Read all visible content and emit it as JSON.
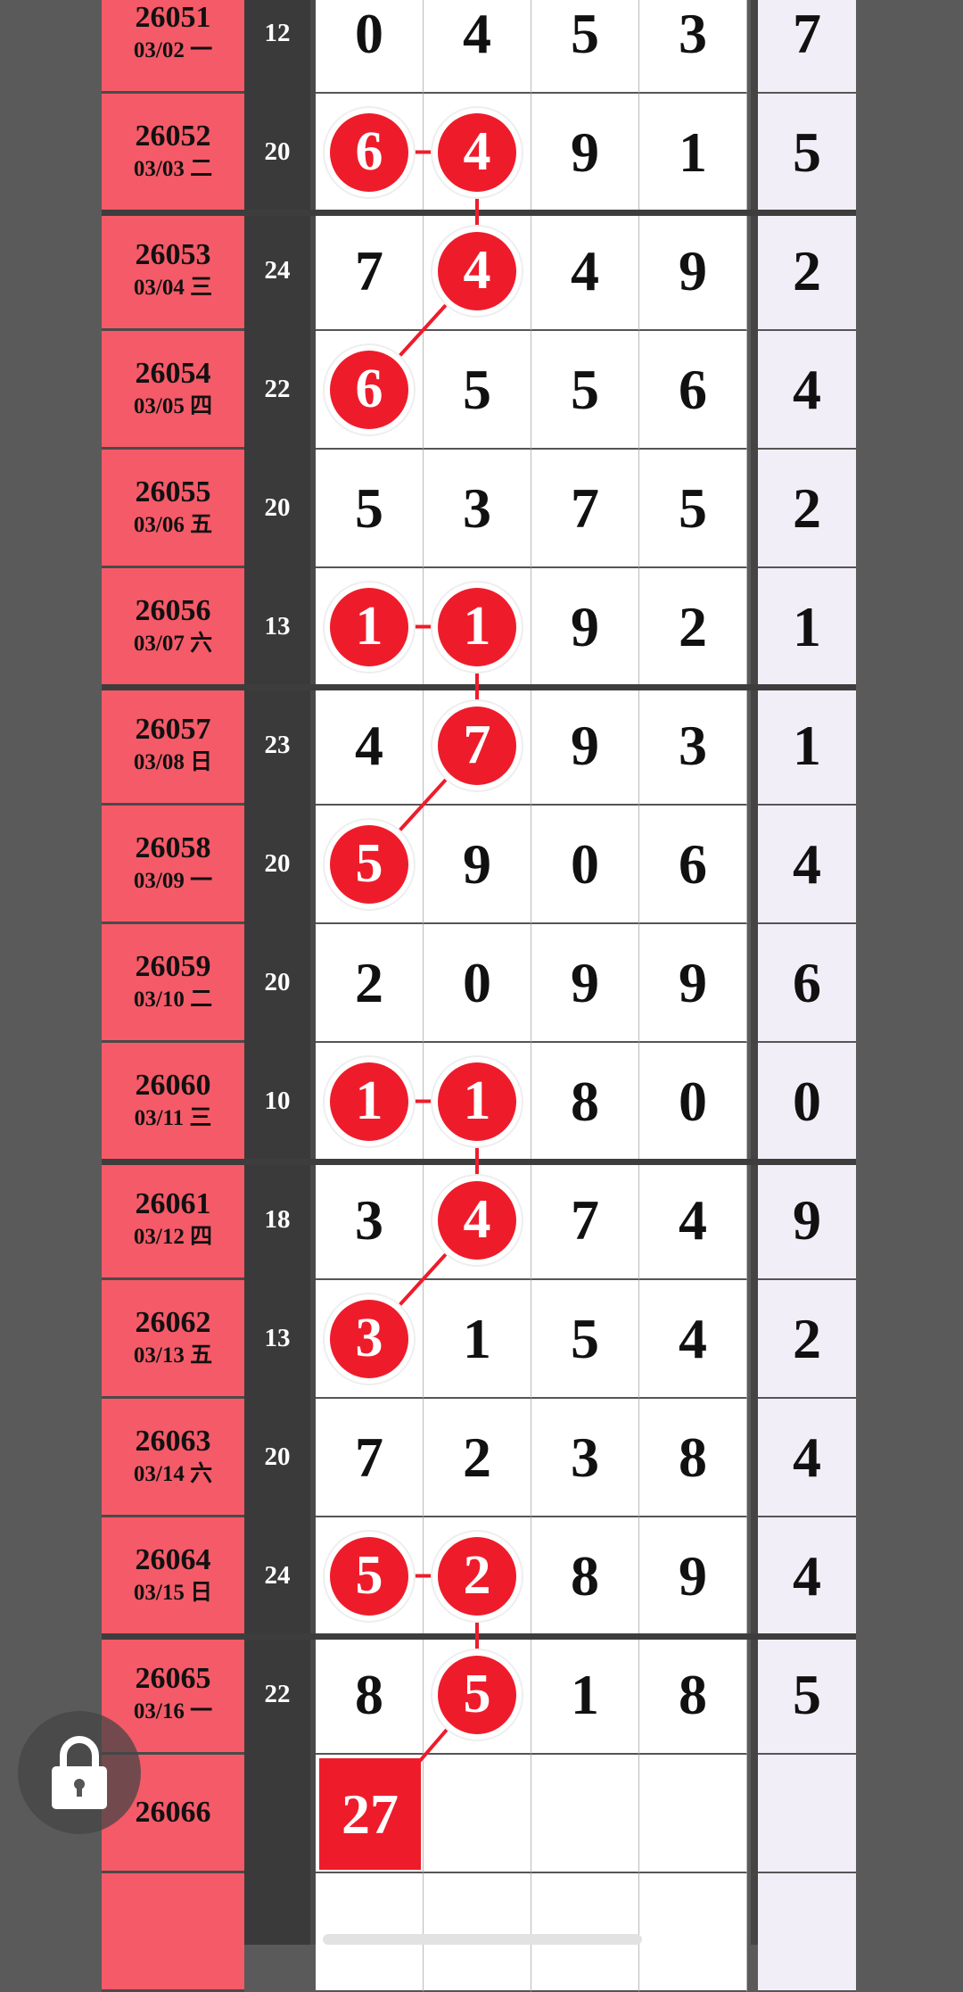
{
  "colors": {
    "issue_bg": "#f55a68",
    "ball": "#ee1c2b",
    "sum_bg": "#3a3a3a",
    "last_col_bg": "#f2eef7",
    "page_bg": "#5a5a5a"
  },
  "rows": [
    {
      "issue": "26051",
      "date": "03/02 一",
      "sum": "12",
      "digits": [
        "0",
        "4",
        "5",
        "3"
      ],
      "last": "7",
      "circled": []
    },
    {
      "issue": "26052",
      "date": "03/03 二",
      "sum": "20",
      "digits": [
        "6",
        "4",
        "9",
        "1"
      ],
      "last": "5",
      "circled": [
        0,
        1
      ]
    },
    {
      "issue": "26053",
      "date": "03/04 三",
      "sum": "24",
      "digits": [
        "7",
        "4",
        "4",
        "9"
      ],
      "last": "2",
      "circled": [
        1
      ]
    },
    {
      "issue": "26054",
      "date": "03/05 四",
      "sum": "22",
      "digits": [
        "6",
        "5",
        "5",
        "6"
      ],
      "last": "4",
      "circled": [
        0
      ]
    },
    {
      "issue": "26055",
      "date": "03/06 五",
      "sum": "20",
      "digits": [
        "5",
        "3",
        "7",
        "5"
      ],
      "last": "2",
      "circled": []
    },
    {
      "issue": "26056",
      "date": "03/07 六",
      "sum": "13",
      "digits": [
        "1",
        "1",
        "9",
        "2"
      ],
      "last": "1",
      "circled": [
        0,
        1
      ]
    },
    {
      "issue": "26057",
      "date": "03/08 日",
      "sum": "23",
      "digits": [
        "4",
        "7",
        "9",
        "3"
      ],
      "last": "1",
      "circled": [
        1
      ]
    },
    {
      "issue": "26058",
      "date": "03/09 一",
      "sum": "20",
      "digits": [
        "5",
        "9",
        "0",
        "6"
      ],
      "last": "4",
      "circled": [
        0
      ]
    },
    {
      "issue": "26059",
      "date": "03/10 二",
      "sum": "20",
      "digits": [
        "2",
        "0",
        "9",
        "9"
      ],
      "last": "6",
      "circled": []
    },
    {
      "issue": "26060",
      "date": "03/11 三",
      "sum": "10",
      "digits": [
        "1",
        "1",
        "8",
        "0"
      ],
      "last": "0",
      "circled": [
        0,
        1
      ]
    },
    {
      "issue": "26061",
      "date": "03/12 四",
      "sum": "18",
      "digits": [
        "3",
        "4",
        "7",
        "4"
      ],
      "last": "9",
      "circled": [
        1
      ]
    },
    {
      "issue": "26062",
      "date": "03/13 五",
      "sum": "13",
      "digits": [
        "3",
        "1",
        "5",
        "4"
      ],
      "last": "2",
      "circled": [
        0
      ]
    },
    {
      "issue": "26063",
      "date": "03/14 六",
      "sum": "20",
      "digits": [
        "7",
        "2",
        "3",
        "8"
      ],
      "last": "4",
      "circled": []
    },
    {
      "issue": "26064",
      "date": "03/15 日",
      "sum": "24",
      "digits": [
        "5",
        "2",
        "8",
        "9"
      ],
      "last": "4",
      "circled": [
        0,
        1
      ]
    },
    {
      "issue": "26065",
      "date": "03/16 一",
      "sum": "22",
      "digits": [
        "8",
        "5",
        "1",
        "8"
      ],
      "last": "5",
      "circled": [
        1
      ]
    },
    {
      "issue": "26066",
      "date": "",
      "sum": "",
      "digits": [
        "",
        "",
        "",
        ""
      ],
      "last": "",
      "circled": [],
      "prediction": "27"
    },
    {
      "issue": "",
      "date": "",
      "sum": "",
      "digits": [
        "",
        "",
        "",
        ""
      ],
      "last": "",
      "circled": []
    }
  ],
  "lock_icon": "padlock-icon"
}
